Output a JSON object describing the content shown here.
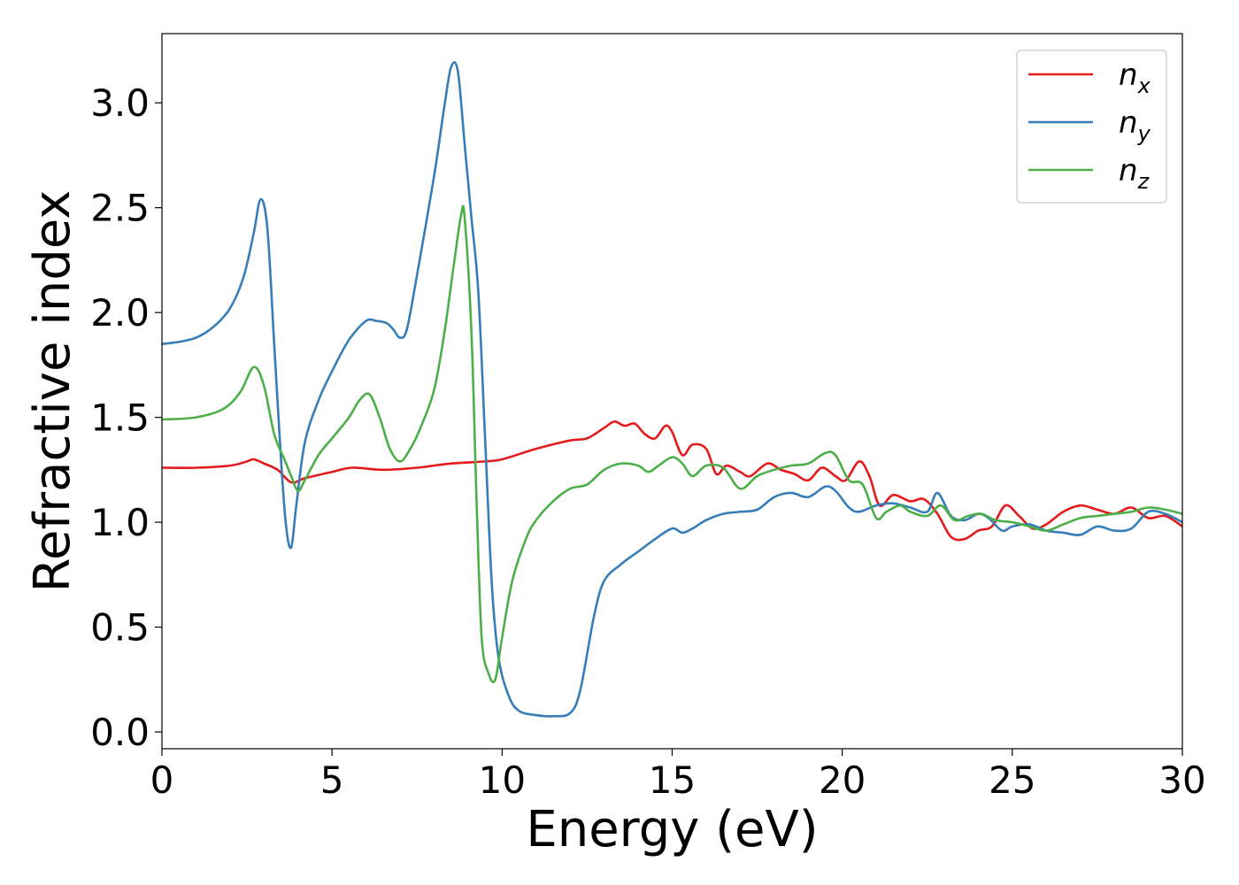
{
  "chart_data": {
    "type": "line",
    "title": "",
    "xlabel": "Energy (eV)",
    "ylabel": "Refractive index",
    "xlim": [
      0,
      30
    ],
    "ylim": [
      -0.08,
      3.33
    ],
    "xticks": [
      0,
      5,
      10,
      15,
      20,
      25,
      30
    ],
    "xtick_labels": [
      "0",
      "5",
      "10",
      "15",
      "20",
      "25",
      "30"
    ],
    "yticks": [
      0.0,
      0.5,
      1.0,
      1.5,
      2.0,
      2.5,
      3.0
    ],
    "ytick_labels": [
      "0.0",
      "0.5",
      "1.0",
      "1.5",
      "2.0",
      "2.5",
      "3.0"
    ],
    "grid": false,
    "legend_position": "top-right",
    "series": [
      {
        "name": "n_x",
        "base": "n",
        "sub": "x",
        "color": "#e41a1c",
        "x": [
          0,
          1,
          2,
          2.5,
          2.7,
          3,
          3.4,
          3.8,
          4.2,
          5,
          5.6,
          6.5,
          7.5,
          8.5,
          9.5,
          10,
          11,
          12,
          12.5,
          13,
          13.3,
          13.6,
          13.9,
          14.2,
          14.5,
          14.8,
          15,
          15.3,
          15.6,
          16,
          16.3,
          16.6,
          17,
          17.3,
          17.8,
          18.2,
          18.6,
          19,
          19.4,
          19.8,
          20.1,
          20.5,
          20.8,
          21.1,
          21.5,
          22,
          22.4,
          22.8,
          23.2,
          23.6,
          24,
          24.4,
          24.8,
          25.2,
          25.6,
          26,
          26.5,
          27,
          27.5,
          28,
          28.5,
          29,
          29.5,
          30
        ],
        "y": [
          1.26,
          1.26,
          1.27,
          1.29,
          1.3,
          1.28,
          1.25,
          1.19,
          1.21,
          1.24,
          1.26,
          1.25,
          1.26,
          1.28,
          1.29,
          1.3,
          1.35,
          1.39,
          1.4,
          1.45,
          1.48,
          1.46,
          1.47,
          1.42,
          1.4,
          1.46,
          1.43,
          1.32,
          1.37,
          1.35,
          1.23,
          1.27,
          1.24,
          1.22,
          1.28,
          1.25,
          1.23,
          1.2,
          1.26,
          1.22,
          1.2,
          1.29,
          1.22,
          1.08,
          1.13,
          1.1,
          1.11,
          1.04,
          0.93,
          0.92,
          0.96,
          0.98,
          1.08,
          1.03,
          0.97,
          0.99,
          1.05,
          1.08,
          1.06,
          1.04,
          1.07,
          1.02,
          1.03,
          0.98
        ]
      },
      {
        "name": "n_y",
        "base": "n",
        "sub": "y",
        "color": "#377eb8",
        "x": [
          0,
          0.5,
          1,
          1.5,
          2,
          2.4,
          2.7,
          2.9,
          3.1,
          3.3,
          3.5,
          3.65,
          3.8,
          3.95,
          4.2,
          4.6,
          5,
          5.5,
          6,
          6.3,
          6.6,
          6.8,
          7,
          7.2,
          7.5,
          8,
          8.3,
          8.5,
          8.7,
          8.9,
          9.1,
          9.3,
          9.5,
          9.7,
          9.9,
          10.2,
          10.5,
          11,
          11.5,
          12,
          12.3,
          12.7,
          13,
          13.5,
          14,
          14.5,
          15,
          15.3,
          15.6,
          16,
          16.5,
          17,
          17.5,
          18,
          18.5,
          19,
          19.5,
          19.8,
          20.2,
          20.5,
          21,
          21.5,
          22,
          22.5,
          22.8,
          23.2,
          23.6,
          24,
          24.3,
          24.7,
          25,
          25.5,
          26,
          26.5,
          27,
          27.5,
          28,
          28.5,
          29,
          29.5,
          30
        ],
        "y": [
          1.85,
          1.86,
          1.88,
          1.93,
          2.02,
          2.17,
          2.38,
          2.54,
          2.4,
          1.85,
          1.3,
          0.98,
          0.88,
          1.08,
          1.38,
          1.58,
          1.72,
          1.87,
          1.96,
          1.96,
          1.95,
          1.92,
          1.88,
          1.92,
          2.18,
          2.65,
          2.98,
          3.17,
          3.15,
          2.8,
          2.45,
          2.1,
          1.4,
          0.7,
          0.35,
          0.17,
          0.1,
          0.08,
          0.075,
          0.09,
          0.2,
          0.55,
          0.72,
          0.8,
          0.86,
          0.92,
          0.97,
          0.95,
          0.97,
          1.01,
          1.04,
          1.05,
          1.06,
          1.12,
          1.14,
          1.12,
          1.17,
          1.15,
          1.07,
          1.05,
          1.08,
          1.09,
          1.07,
          1.05,
          1.14,
          1.03,
          1.01,
          1.04,
          1.02,
          0.96,
          0.98,
          0.99,
          0.96,
          0.95,
          0.94,
          0.98,
          0.96,
          0.97,
          1.05,
          1.04,
          1.0
        ]
      },
      {
        "name": "n_z",
        "base": "n",
        "sub": "z",
        "color": "#4daf4a",
        "x": [
          0,
          1,
          1.8,
          2.3,
          2.7,
          3,
          3.3,
          3.6,
          3.8,
          4,
          4.2,
          4.6,
          5,
          5.5,
          5.8,
          6.1,
          6.4,
          6.7,
          7,
          7.3,
          7.6,
          8,
          8.3,
          8.6,
          8.8,
          8.9,
          9.1,
          9.25,
          9.4,
          9.6,
          9.8,
          10,
          10.3,
          10.7,
          11,
          11.5,
          12,
          12.5,
          13,
          13.5,
          14,
          14.3,
          14.6,
          15,
          15.3,
          15.6,
          16,
          16.5,
          17,
          17.5,
          18,
          18.5,
          19,
          19.5,
          19.8,
          20.2,
          20.6,
          21,
          21.3,
          21.7,
          22,
          22.5,
          22.9,
          23.3,
          23.7,
          24.1,
          24.5,
          25,
          25.5,
          26,
          26.5,
          27,
          27.5,
          28,
          28.5,
          29,
          29.5,
          30
        ],
        "y": [
          1.49,
          1.5,
          1.54,
          1.62,
          1.74,
          1.65,
          1.42,
          1.3,
          1.22,
          1.15,
          1.2,
          1.32,
          1.4,
          1.5,
          1.58,
          1.61,
          1.5,
          1.35,
          1.29,
          1.35,
          1.45,
          1.63,
          1.9,
          2.25,
          2.47,
          2.45,
          1.9,
          1.1,
          0.45,
          0.28,
          0.25,
          0.45,
          0.72,
          0.92,
          1.01,
          1.1,
          1.16,
          1.18,
          1.25,
          1.28,
          1.27,
          1.24,
          1.27,
          1.31,
          1.28,
          1.22,
          1.27,
          1.26,
          1.16,
          1.22,
          1.25,
          1.27,
          1.28,
          1.33,
          1.32,
          1.2,
          1.18,
          1.02,
          1.05,
          1.08,
          1.05,
          1.03,
          1.08,
          1.01,
          1.03,
          1.04,
          1.01,
          1.0,
          0.98,
          0.96,
          0.99,
          1.02,
          1.03,
          1.04,
          1.05,
          1.07,
          1.06,
          1.04
        ]
      }
    ]
  }
}
